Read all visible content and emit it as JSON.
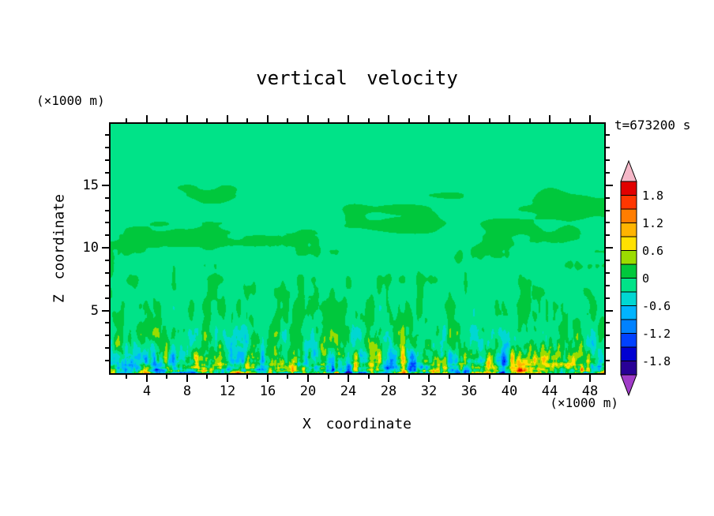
{
  "chart_data": {
    "type": "heatmap",
    "title": "vertical velocity",
    "time_label": "t=673200 s",
    "x_axis": {
      "title": "X coordinate",
      "units_label": "(×1000 m)",
      "major_ticks": [
        4,
        8,
        12,
        16,
        20,
        24,
        28,
        32,
        36,
        40,
        44,
        48
      ],
      "minor_tick_step": 2,
      "range": [
        0.4,
        49.4
      ]
    },
    "y_axis": {
      "title": "Z coordinate",
      "units_label": "(×1000 m)",
      "major_ticks": [
        5,
        10,
        15
      ],
      "minor_tick_step": 1,
      "range": [
        0,
        19.9
      ]
    },
    "colorbar": {
      "tick_values": [
        1.8,
        1.2,
        0.6,
        0,
        -0.6,
        -1.2,
        -1.8
      ],
      "tick_labels": [
        "1.8",
        "1.2",
        "0.6",
        "0",
        "-0.6",
        "-1.2",
        "-1.8"
      ],
      "level_min": -2.1,
      "level_step": 0.3,
      "num_cells": 14,
      "colors_ascending": [
        "#280096",
        "#0000d2",
        "#0041ff",
        "#0082ff",
        "#00b4ff",
        "#00d7d2",
        "#00e388",
        "#00c83c",
        "#9bdc00",
        "#ffe100",
        "#ffb400",
        "#ff7d00",
        "#ff3700",
        "#e10000"
      ],
      "under_arrow_color": "#a03cc8",
      "over_arrow_color": "#f5b8c8",
      "outline_color": "#000000"
    },
    "field_summary": {
      "background_color": "#00e388",
      "description": "mostly uniform weak values between -0.3 and 0 aloft; scattered weak positive patches (0 to 0.3) between z=8 and z=16; fine-scale turbulent plumes below z~6 strengthening toward the surface with values reaching about +2 (yellow/orange/red) and -2 (cyan/blue/navy) in a thin layer at the bottom boundary"
    },
    "field_model": {
      "base_value": -0.05,
      "aloft_patches": {
        "amplitude": 0.34,
        "z_center": 11.8,
        "z_sigma": 3.4,
        "fx": 0.016,
        "fy": 0.055
      },
      "plumes": {
        "amplitude": 1.7,
        "z_decay": 3.0,
        "fx": 0.1,
        "fy": 0.03
      },
      "plumes_fine": {
        "amplitude": 0.9,
        "z_decay": 1.7,
        "fx": 0.27,
        "fy": 0.1
      },
      "surface_streaks": {
        "amplitude": 1.7,
        "z_decay": 0.55,
        "fx": 0.05,
        "fy": 0.26
      }
    }
  }
}
